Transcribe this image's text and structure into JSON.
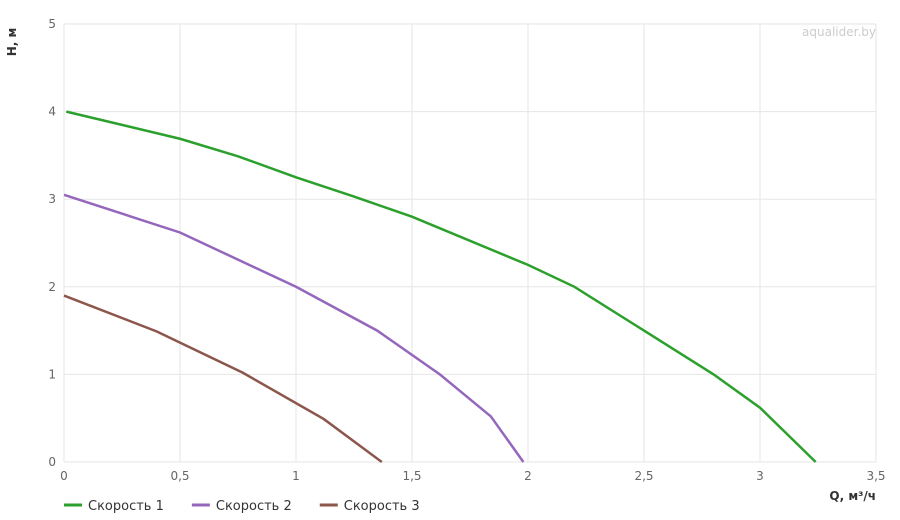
{
  "chart_data": {
    "type": "line",
    "x_label": "Q, м³/ч",
    "y_label": "H, м",
    "watermark": "aqualider.by",
    "xlim": [
      0,
      3.5
    ],
    "ylim": [
      0,
      5
    ],
    "xticks": [
      0,
      {
        "value": 0.5,
        "label": "0,5"
      },
      1,
      {
        "value": 1.5,
        "label": "1,5"
      },
      2,
      {
        "value": 2.5,
        "label": "2,5"
      },
      3,
      {
        "value": 3.5,
        "label": "3,5"
      }
    ],
    "yticks": [
      0,
      1,
      2,
      3,
      4,
      5
    ],
    "grid": true,
    "series": [
      {
        "name": "Скорость 1",
        "color": "#2ca02c",
        "x": [
          0.01,
          0.5,
          0.75,
          1,
          1.25,
          1.5,
          2,
          2.2,
          2.5,
          2.8,
          3,
          3.24
        ],
        "values": [
          4.0,
          3.69,
          3.49,
          3.25,
          3.03,
          2.8,
          2.25,
          2.0,
          1.5,
          1.0,
          0.62,
          0
        ]
      },
      {
        "name": "Скорость 2",
        "color": "#9467bd",
        "x": [
          0,
          0.5,
          1,
          1.35,
          1.62,
          1.84,
          1.98
        ],
        "values": [
          3.05,
          2.62,
          2.0,
          1.5,
          1.0,
          0.52,
          0
        ]
      },
      {
        "name": "Скорость 3",
        "color": "#8c564b",
        "x": [
          0,
          0.4,
          0.77,
          1.12,
          1.37
        ],
        "values": [
          1.9,
          1.49,
          1.02,
          0.49,
          0
        ]
      }
    ]
  }
}
